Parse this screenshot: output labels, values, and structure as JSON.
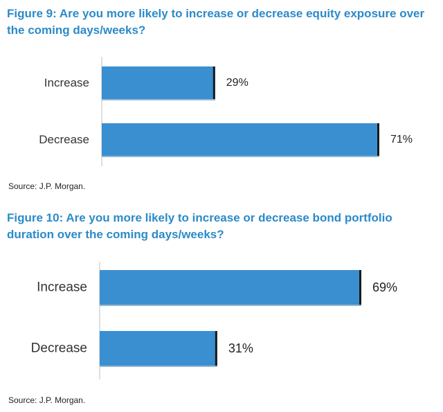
{
  "colors": {
    "title": "#2b8ac9",
    "bar": "#3a8fd1",
    "bar_edge": "#1a1a1a",
    "text": "#333333"
  },
  "chart_data": [
    {
      "type": "bar",
      "orientation": "horizontal",
      "title": "Figure 9: Are you more likely to increase or decrease equity exposure over the coming days/weeks?",
      "categories": [
        "Increase",
        "Decrease"
      ],
      "values": [
        29,
        71
      ],
      "value_labels": [
        "29%",
        "71%"
      ],
      "unit": "%",
      "xlim": [
        0,
        71
      ],
      "source": "Source: J.P. Morgan."
    },
    {
      "type": "bar",
      "orientation": "horizontal",
      "title": "Figure 10: Are you more likely to increase or decrease bond portfolio duration over the coming days/weeks?",
      "categories": [
        "Increase",
        "Decrease"
      ],
      "values": [
        69,
        31
      ],
      "value_labels": [
        "69%",
        "31%"
      ],
      "unit": "%",
      "xlim": [
        0,
        69
      ],
      "source": "Source: J.P. Morgan."
    }
  ]
}
